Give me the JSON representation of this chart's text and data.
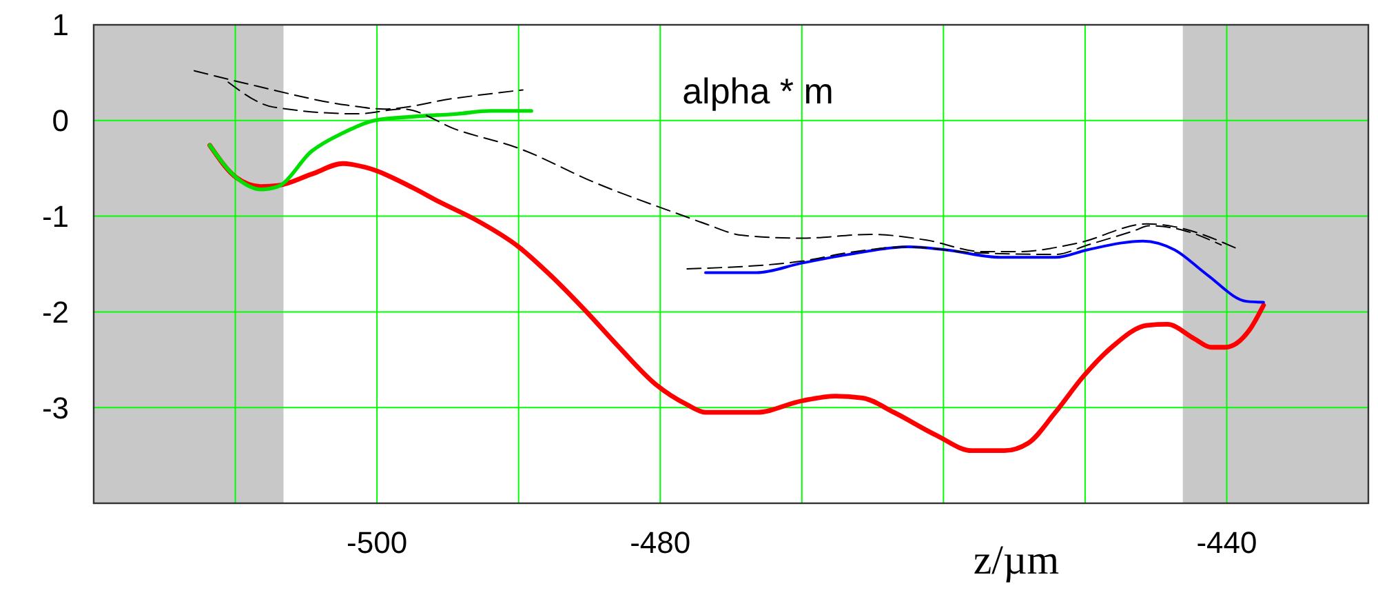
{
  "chart_data": {
    "type": "line",
    "xlabel": "z/µm",
    "annotations": [
      "alpha * m"
    ],
    "xlim": [
      -520,
      -430
    ],
    "ylim": [
      -4,
      1
    ],
    "xticks": [
      {
        "value": -510,
        "label": null
      },
      -500,
      {
        "value": -490,
        "label": null
      },
      -480,
      {
        "value": -470,
        "label": null
      },
      {
        "value": -460,
        "label": null
      },
      {
        "value": -450,
        "label": null
      },
      -440
    ],
    "yticks": [
      1,
      0,
      -1,
      -2,
      -3
    ],
    "grid": true,
    "bands": [
      {
        "axis": "x",
        "from": -520,
        "to": -506.6,
        "color": "#c8c8c8"
      },
      {
        "axis": "x",
        "from": -443.1,
        "to": -430,
        "color": "#c8c8c8"
      }
    ],
    "series": [
      {
        "color": "#ff0000",
        "x": [
          -511.8,
          -509.9,
          -508.2,
          -507,
          -504.6,
          -502.4,
          -500.8,
          -497.5,
          -495.6,
          -493,
          -490,
          -487.8,
          -485.2,
          -482.9,
          -480.3,
          -478.1,
          -476.8,
          -473.2,
          -470,
          -467.6,
          -465.7,
          -463.5,
          -460.5,
          -458,
          -455.7,
          -454,
          -452.1,
          -450.1,
          -448.2,
          -445.6,
          -444.2,
          -442.3,
          -441.1,
          -440.1,
          -438.4,
          -437.4
        ],
        "values": [
          -0.26,
          -0.6,
          -0.69,
          -0.68,
          -0.56,
          -0.45,
          -0.49,
          -0.7,
          -0.85,
          -1.04,
          -1.32,
          -1.61,
          -2.0,
          -2.37,
          -2.76,
          -2.97,
          -3.05,
          -3.05,
          -2.93,
          -2.88,
          -2.9,
          -3.05,
          -3.29,
          -3.45,
          -3.45,
          -3.37,
          -3.05,
          -2.67,
          -2.38,
          -2.14,
          -2.13,
          -2.28,
          -2.37,
          -2.37,
          -2.19,
          -1.93
        ]
      },
      {
        "color": "#00e000",
        "x": [
          -511.8,
          -509.9,
          -508.2,
          -507,
          -504.6,
          -502.4,
          -500.2,
          -497.5,
          -494.3,
          -492,
          -489.1
        ],
        "values": [
          -0.26,
          -0.6,
          -0.72,
          -0.69,
          -0.32,
          -0.13,
          0.0,
          0.04,
          0.07,
          0.1,
          0.1
        ]
      },
      {
        "color": "#0000ff",
        "x": [
          -476.8,
          -473.2,
          -470,
          -466.7,
          -462.5,
          -459.9,
          -456,
          -452.1,
          -449.8,
          -445.9,
          -443.7,
          -441.4,
          -438.6,
          -437.4
        ],
        "values": [
          -1.59,
          -1.59,
          -1.49,
          -1.4,
          -1.32,
          -1.35,
          -1.43,
          -1.43,
          -1.35,
          -1.26,
          -1.35,
          -1.61,
          -1.89,
          -1.9
        ]
      },
      {
        "color": "#000000",
        "line_style": "dashed",
        "x": [
          -512.9,
          -508.5,
          -502.1,
          -499.5,
          -494.6,
          -489.7
        ],
        "values": [
          0.52,
          0.36,
          0.16,
          0.12,
          0.23,
          0.32
        ]
      },
      {
        "color": "#000000",
        "line_style": "dashed",
        "x": [
          -510.5,
          -507.3,
          -501.4,
          -498.2,
          -494.3,
          -490,
          -484.6,
          -478.1,
          -476.8,
          -474.2,
          -470,
          -465.1,
          -461.2,
          -457.3,
          -454.7,
          -450.5,
          -445.6,
          -443.7,
          -439.1
        ],
        "values": [
          0.4,
          0.14,
          0.07,
          0.12,
          -0.1,
          -0.29,
          -0.65,
          -1.01,
          -1.08,
          -1.2,
          -1.23,
          -1.19,
          -1.25,
          -1.37,
          -1.37,
          -1.28,
          -1.08,
          -1.11,
          -1.35
        ]
      },
      {
        "color": "#000000",
        "line_style": "dashed",
        "x": [
          -478.1,
          -470,
          -466.7,
          -462.5,
          -458,
          -452.1,
          -449.8,
          -446.5,
          -445.5,
          -443,
          -440.4
        ],
        "values": [
          -1.55,
          -1.47,
          -1.38,
          -1.32,
          -1.38,
          -1.4,
          -1.3,
          -1.15,
          -1.1,
          -1.15,
          -1.3
        ]
      }
    ]
  }
}
